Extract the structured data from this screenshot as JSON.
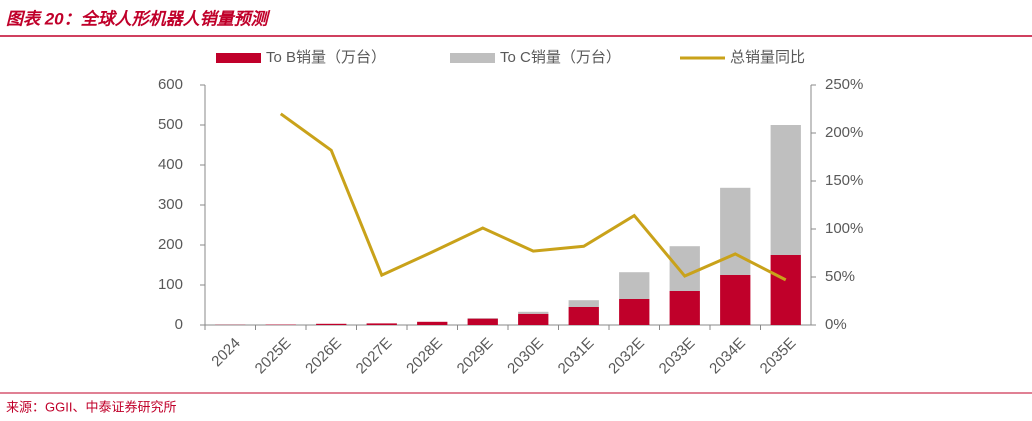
{
  "header": {
    "title": "图表 20：全球人形机器人销量预测"
  },
  "chart_data": {
    "type": "bar-line",
    "categories": [
      "2024",
      "2025E",
      "2026E",
      "2027E",
      "2028E",
      "2029E",
      "2030E",
      "2031E",
      "2032E",
      "2033E",
      "2034E",
      "2035E"
    ],
    "series": [
      {
        "name": "To B销量（万台）",
        "type": "bar",
        "color": "#c0002a",
        "values": [
          0.5,
          1,
          3,
          4,
          8,
          16,
          28,
          45,
          65,
          85,
          125,
          175
        ]
      },
      {
        "name": "To C销量（万台）",
        "type": "bar",
        "color": "#bfbfbf",
        "values": [
          0,
          0,
          0,
          0,
          0,
          1,
          5,
          17,
          67,
          112,
          218,
          325
        ]
      },
      {
        "name": "总销量同比",
        "type": "line",
        "axis": "y2",
        "color": "#c9a21a",
        "values": [
          null,
          220,
          182,
          52,
          76,
          101,
          77,
          82,
          114,
          51,
          74,
          47
        ]
      }
    ],
    "ylim": [
      0,
      600
    ],
    "yticks": [
      0,
      100,
      200,
      300,
      400,
      500,
      600
    ],
    "y2lim": [
      0,
      250
    ],
    "y2ticks": [
      {
        "value": 0,
        "label": "0%"
      },
      {
        "value": 50,
        "label": "50%"
      },
      {
        "value": 100,
        "label": "100%"
      },
      {
        "value": 150,
        "label": "150%"
      },
      {
        "value": 200,
        "label": "200%"
      },
      {
        "value": 250,
        "label": "250%"
      }
    ]
  },
  "footer": {
    "source": "来源：GGII、中泰证券研究所"
  }
}
